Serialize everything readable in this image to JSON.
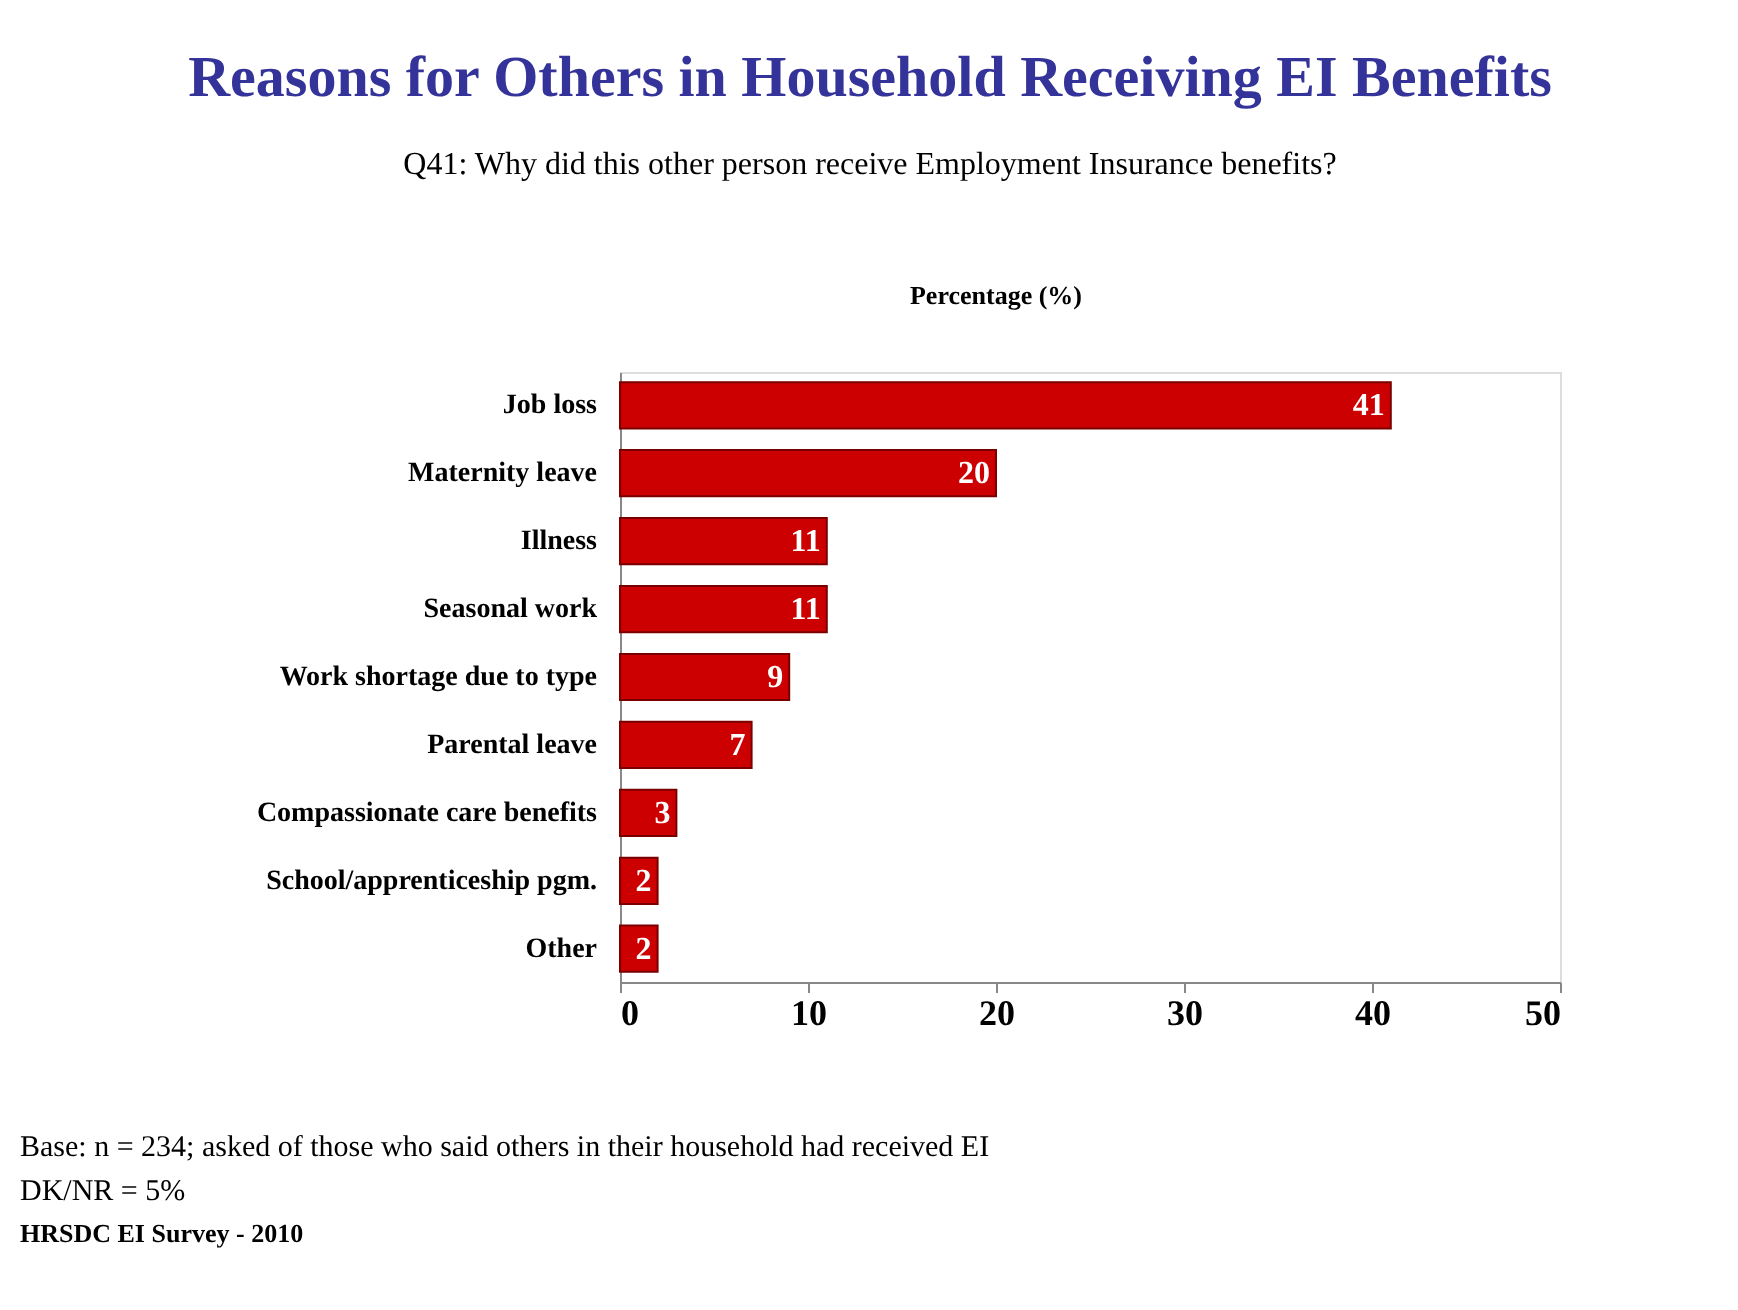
{
  "chart_data": {
    "type": "bar",
    "orientation": "horizontal",
    "title": "Reasons for Others in Household Receiving EI Benefits",
    "subtitle": "Q41: Why did this other person receive Employment Insurance benefits?",
    "xlabel": "Percentage (%)",
    "categories": [
      "Job loss",
      "Maternity leave",
      "Illness",
      "Seasonal work",
      "Work shortage due to type",
      "Parental leave",
      "Compassionate care benefits",
      "School/apprenticeship pgm.",
      "Other"
    ],
    "values": [
      41,
      20,
      11,
      11,
      9,
      7,
      3,
      2,
      2
    ],
    "color": "#cc0000",
    "data_labels": true,
    "xlim": [
      0,
      50
    ],
    "xticks": [
      0,
      10,
      20,
      30,
      40,
      50
    ],
    "grid": false,
    "annotations": [
      "Base: n = 234; asked of those who said others in their household had received EI",
      "DK/NR = 5%",
      "HRSDC EI Survey - 2010"
    ]
  }
}
